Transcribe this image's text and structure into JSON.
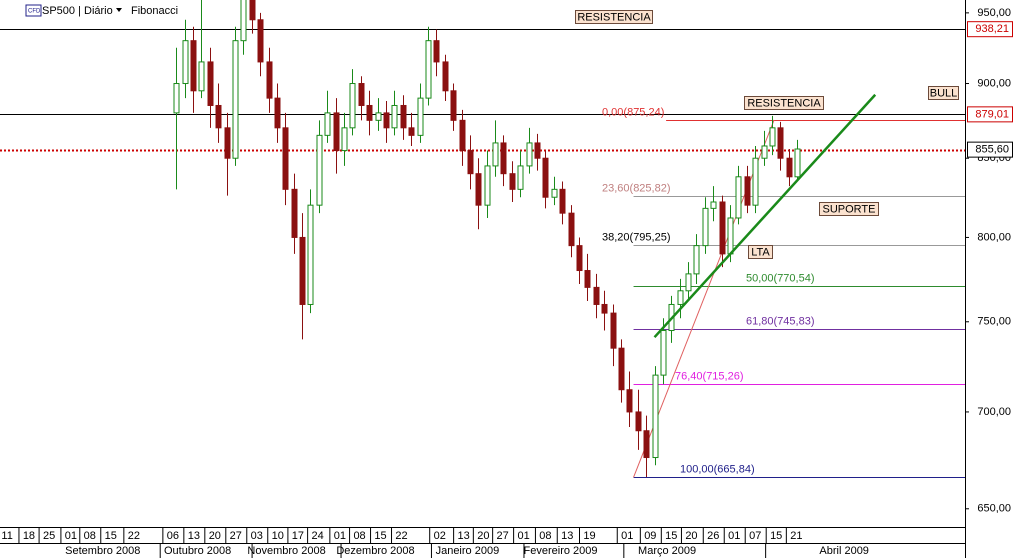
{
  "header": {
    "symbol": "SP500 | Diário",
    "study": "Fibonacci"
  },
  "chart_data": {
    "type": "candlestick",
    "x": [
      42,
      44,
      46,
      48,
      50,
      52,
      54,
      56,
      58,
      60,
      62,
      64,
      66,
      68,
      70,
      72,
      74,
      76,
      78,
      80,
      82,
      84,
      86,
      88,
      90,
      92,
      94,
      96,
      98,
      100,
      102,
      104,
      106,
      108,
      110,
      112,
      114,
      116,
      118,
      120,
      122,
      124,
      126,
      128,
      130,
      132,
      134,
      136,
      138,
      140,
      142,
      144,
      146,
      148,
      150,
      152,
      154,
      156,
      158,
      160,
      162,
      164,
      166,
      168,
      170,
      172,
      174,
      176,
      178,
      180,
      182,
      184,
      186,
      188,
      190
    ],
    "open": [
      880,
      900,
      930,
      895,
      915,
      885,
      870,
      850,
      930,
      960,
      945,
      915,
      890,
      870,
      830,
      800,
      760,
      820,
      865,
      880,
      855,
      870,
      900,
      885,
      875,
      880,
      870,
      885,
      870,
      865,
      890,
      930,
      915,
      895,
      875,
      855,
      840,
      820,
      845,
      860,
      840,
      830,
      845,
      860,
      850,
      825,
      830,
      815,
      795,
      780,
      770,
      760,
      755,
      735,
      712,
      700,
      690,
      676,
      720,
      745,
      760,
      768,
      778,
      795,
      818,
      822,
      790,
      812,
      838,
      820,
      850,
      858,
      870,
      850,
      838
    ],
    "high": [
      925,
      945,
      940,
      965,
      925,
      900,
      880,
      940,
      965,
      968,
      950,
      925,
      900,
      880,
      840,
      815,
      830,
      875,
      895,
      890,
      880,
      910,
      905,
      895,
      890,
      888,
      895,
      892,
      880,
      900,
      940,
      938,
      920,
      900,
      882,
      865,
      850,
      855,
      875,
      865,
      848,
      855,
      870,
      866,
      855,
      838,
      835,
      820,
      800,
      790,
      778,
      768,
      760,
      740,
      722,
      712,
      698,
      725,
      752,
      765,
      775,
      785,
      802,
      825,
      832,
      826,
      820,
      845,
      845,
      858,
      868,
      878,
      874,
      856,
      862
    ],
    "low": [
      830,
      890,
      880,
      890,
      870,
      860,
      826,
      845,
      920,
      935,
      905,
      880,
      860,
      820,
      790,
      740,
      755,
      815,
      860,
      840,
      845,
      865,
      875,
      865,
      868,
      860,
      865,
      862,
      858,
      860,
      885,
      905,
      888,
      868,
      845,
      830,
      805,
      812,
      838,
      832,
      822,
      825,
      840,
      842,
      818,
      820,
      808,
      788,
      772,
      762,
      752,
      745,
      725,
      705,
      692,
      680,
      666,
      672,
      715,
      738,
      752,
      762,
      772,
      790,
      810,
      782,
      785,
      808,
      815,
      815,
      845,
      852,
      842,
      832,
      835
    ],
    "close": [
      900,
      930,
      895,
      915,
      885,
      870,
      850,
      930,
      960,
      945,
      915,
      890,
      870,
      830,
      800,
      760,
      820,
      865,
      880,
      855,
      870,
      900,
      885,
      875,
      880,
      870,
      885,
      870,
      865,
      890,
      930,
      915,
      895,
      875,
      855,
      840,
      820,
      845,
      860,
      840,
      830,
      845,
      860,
      850,
      825,
      830,
      815,
      795,
      780,
      770,
      760,
      755,
      735,
      712,
      700,
      690,
      676,
      720,
      745,
      760,
      768,
      778,
      795,
      818,
      822,
      790,
      812,
      838,
      820,
      850,
      858,
      870,
      850,
      838,
      856
    ],
    "up_color": "#1a8a1a",
    "down_color": "#8b1010",
    "xlim": [
      0,
      230
    ],
    "ylim": [
      641,
      959.4
    ],
    "log_scale": true,
    "yticks": [
      {
        "value": 950,
        "label": "950,00"
      },
      {
        "value": 900,
        "label": "900,00"
      },
      {
        "value": 850,
        "label": "850,00"
      },
      {
        "value": 800,
        "label": "800,00"
      },
      {
        "value": 750,
        "label": "750,00"
      },
      {
        "value": 700,
        "label": "700,00"
      },
      {
        "value": 650,
        "label": "650,00"
      }
    ],
    "xticks": [
      {
        "value": 1.7,
        "label": "11"
      },
      {
        "value": 6.9,
        "label": "18"
      },
      {
        "value": 11.7,
        "label": "25"
      },
      {
        "value": 16.9,
        "label": "01"
      },
      {
        "value": 21.4,
        "label": "08"
      },
      {
        "value": 26.4,
        "label": "15"
      },
      {
        "value": 31.9,
        "label": "22"
      },
      {
        "value": 41.2,
        "label": "06"
      },
      {
        "value": 46.2,
        "label": "13"
      },
      {
        "value": 51.2,
        "label": "20"
      },
      {
        "value": 56.2,
        "label": "27"
      },
      {
        "value": 61.2,
        "label": "03"
      },
      {
        "value": 66.2,
        "label": "10"
      },
      {
        "value": 71,
        "label": "17"
      },
      {
        "value": 75.7,
        "label": "24"
      },
      {
        "value": 81,
        "label": "01"
      },
      {
        "value": 85.7,
        "label": "08"
      },
      {
        "value": 90.7,
        "label": "15"
      },
      {
        "value": 95.7,
        "label": "22"
      },
      {
        "value": 104.8,
        "label": "02"
      },
      {
        "value": 110.5,
        "label": "13"
      },
      {
        "value": 115.2,
        "label": "20"
      },
      {
        "value": 119.8,
        "label": "27"
      },
      {
        "value": 124.8,
        "label": "01"
      },
      {
        "value": 130,
        "label": "08"
      },
      {
        "value": 135.2,
        "label": "13"
      },
      {
        "value": 140.5,
        "label": "19"
      },
      {
        "value": 149.5,
        "label": "01"
      },
      {
        "value": 155,
        "label": "09"
      },
      {
        "value": 160,
        "label": "15"
      },
      {
        "value": 164.8,
        "label": "20"
      },
      {
        "value": 170,
        "label": "26"
      },
      {
        "value": 175,
        "label": "01"
      },
      {
        "value": 180,
        "label": "07"
      },
      {
        "value": 185,
        "label": "15"
      },
      {
        "value": 189.8,
        "label": "21"
      }
    ],
    "month_labels": [
      {
        "value": 24.5,
        "label": "Setembro 2008"
      },
      {
        "value": 47.1,
        "label": "Outubro 2008"
      },
      {
        "value": 68.3,
        "label": "Novembro 2008"
      },
      {
        "value": 89.5,
        "label": "Dezembro 2008"
      },
      {
        "value": 111.4,
        "label": "Janeiro 2009"
      },
      {
        "value": 133.6,
        "label": "Fevereiro 2009"
      },
      {
        "value": 159,
        "label": "Março 2009"
      },
      {
        "value": 201.2,
        "label": "Abril 2009"
      }
    ],
    "price_lines": [
      {
        "value": 938.21,
        "label": "938,21",
        "line_color": "#000000",
        "label_color": "#cc0000",
        "style": "solid"
      },
      {
        "value": 879.01,
        "label": "879,01",
        "line_color": "#000000",
        "label_color": "#cc0000",
        "style": "solid"
      },
      {
        "value": 855.6,
        "label": "855,60",
        "line_color": "#cc0000",
        "label_color": "#000000",
        "style": "dotted"
      }
    ],
    "fibonacci": {
      "from": {
        "x": 151,
        "price": 665.84
      },
      "to": {
        "x": 184.5,
        "price": 875.24
      },
      "color": "#e06060",
      "levels": [
        {
          "value": 875.24,
          "label": "0,00(875,24)",
          "color": "#e03030"
        },
        {
          "value": 825.82,
          "label": "23,60(825,82)",
          "color": "#c08080"
        },
        {
          "value": 795.25,
          "label": "38,20(795,25)",
          "color": "#000000"
        },
        {
          "value": 770.54,
          "label": "50,00(770,54)",
          "color": "#2e8b2e"
        },
        {
          "value": 745.83,
          "label": "61,80(745,83)",
          "color": "#7030a0"
        },
        {
          "value": 715.26,
          "label": "76,40(715,26)",
          "color": "#e020e0"
        },
        {
          "value": 665.84,
          "label": "100,00(665,84)",
          "color": "#20208a"
        }
      ]
    },
    "trendline": {
      "x": [
        156,
        208.6
      ],
      "y": [
        741.2,
        892.3
      ],
      "color": "#1a8a1a"
    },
    "annotations": [
      "RESISTENCIA",
      "RESISTENCIA",
      "BULL",
      "SUPORTE",
      "LTA"
    ]
  }
}
